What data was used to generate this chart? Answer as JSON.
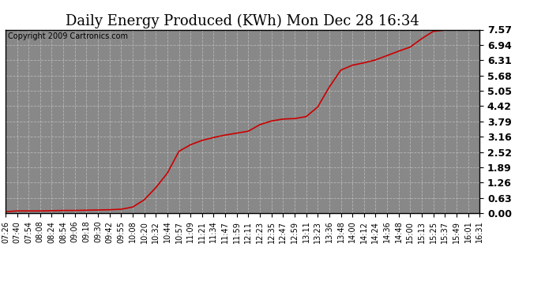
{
  "title": "Daily Energy Produced (KWh) Mon Dec 28 16:34",
  "copyright_text": "Copyright 2009 Cartronics.com",
  "line_color": "#cc0000",
  "bg_color": "#ffffff",
  "plot_bg_color": "#888888",
  "grid_color": "#bbbbbb",
  "ylim": [
    0.0,
    7.57
  ],
  "yticks": [
    0.0,
    0.63,
    1.26,
    1.89,
    2.52,
    3.16,
    3.79,
    4.42,
    5.05,
    5.68,
    6.31,
    6.94,
    7.57
  ],
  "x_labels": [
    "07:26",
    "07:40",
    "07:54",
    "08:08",
    "08:24",
    "08:54",
    "09:06",
    "09:18",
    "09:30",
    "09:42",
    "09:55",
    "10:08",
    "10:20",
    "10:32",
    "10:44",
    "10:57",
    "11:09",
    "11:21",
    "11:34",
    "11:47",
    "11:59",
    "12:11",
    "12:23",
    "12:35",
    "12:47",
    "12:59",
    "13:11",
    "13:23",
    "13:36",
    "13:48",
    "14:00",
    "14:12",
    "14:24",
    "14:36",
    "14:48",
    "15:00",
    "15:13",
    "15:25",
    "15:37",
    "15:49",
    "16:01",
    "16:31"
  ],
  "data_y": [
    0.06,
    0.09,
    0.09,
    0.09,
    0.1,
    0.11,
    0.11,
    0.12,
    0.13,
    0.14,
    0.16,
    0.25,
    0.55,
    1.05,
    1.65,
    2.55,
    2.82,
    3.0,
    3.12,
    3.22,
    3.3,
    3.38,
    3.65,
    3.8,
    3.88,
    3.9,
    3.98,
    4.38,
    5.2,
    5.9,
    6.1,
    6.2,
    6.32,
    6.5,
    6.68,
    6.85,
    7.2,
    7.5,
    7.55,
    7.56,
    7.57,
    7.57
  ],
  "title_fontsize": 13,
  "copyright_fontsize": 7,
  "ytick_fontsize": 9,
  "xtick_fontsize": 7
}
